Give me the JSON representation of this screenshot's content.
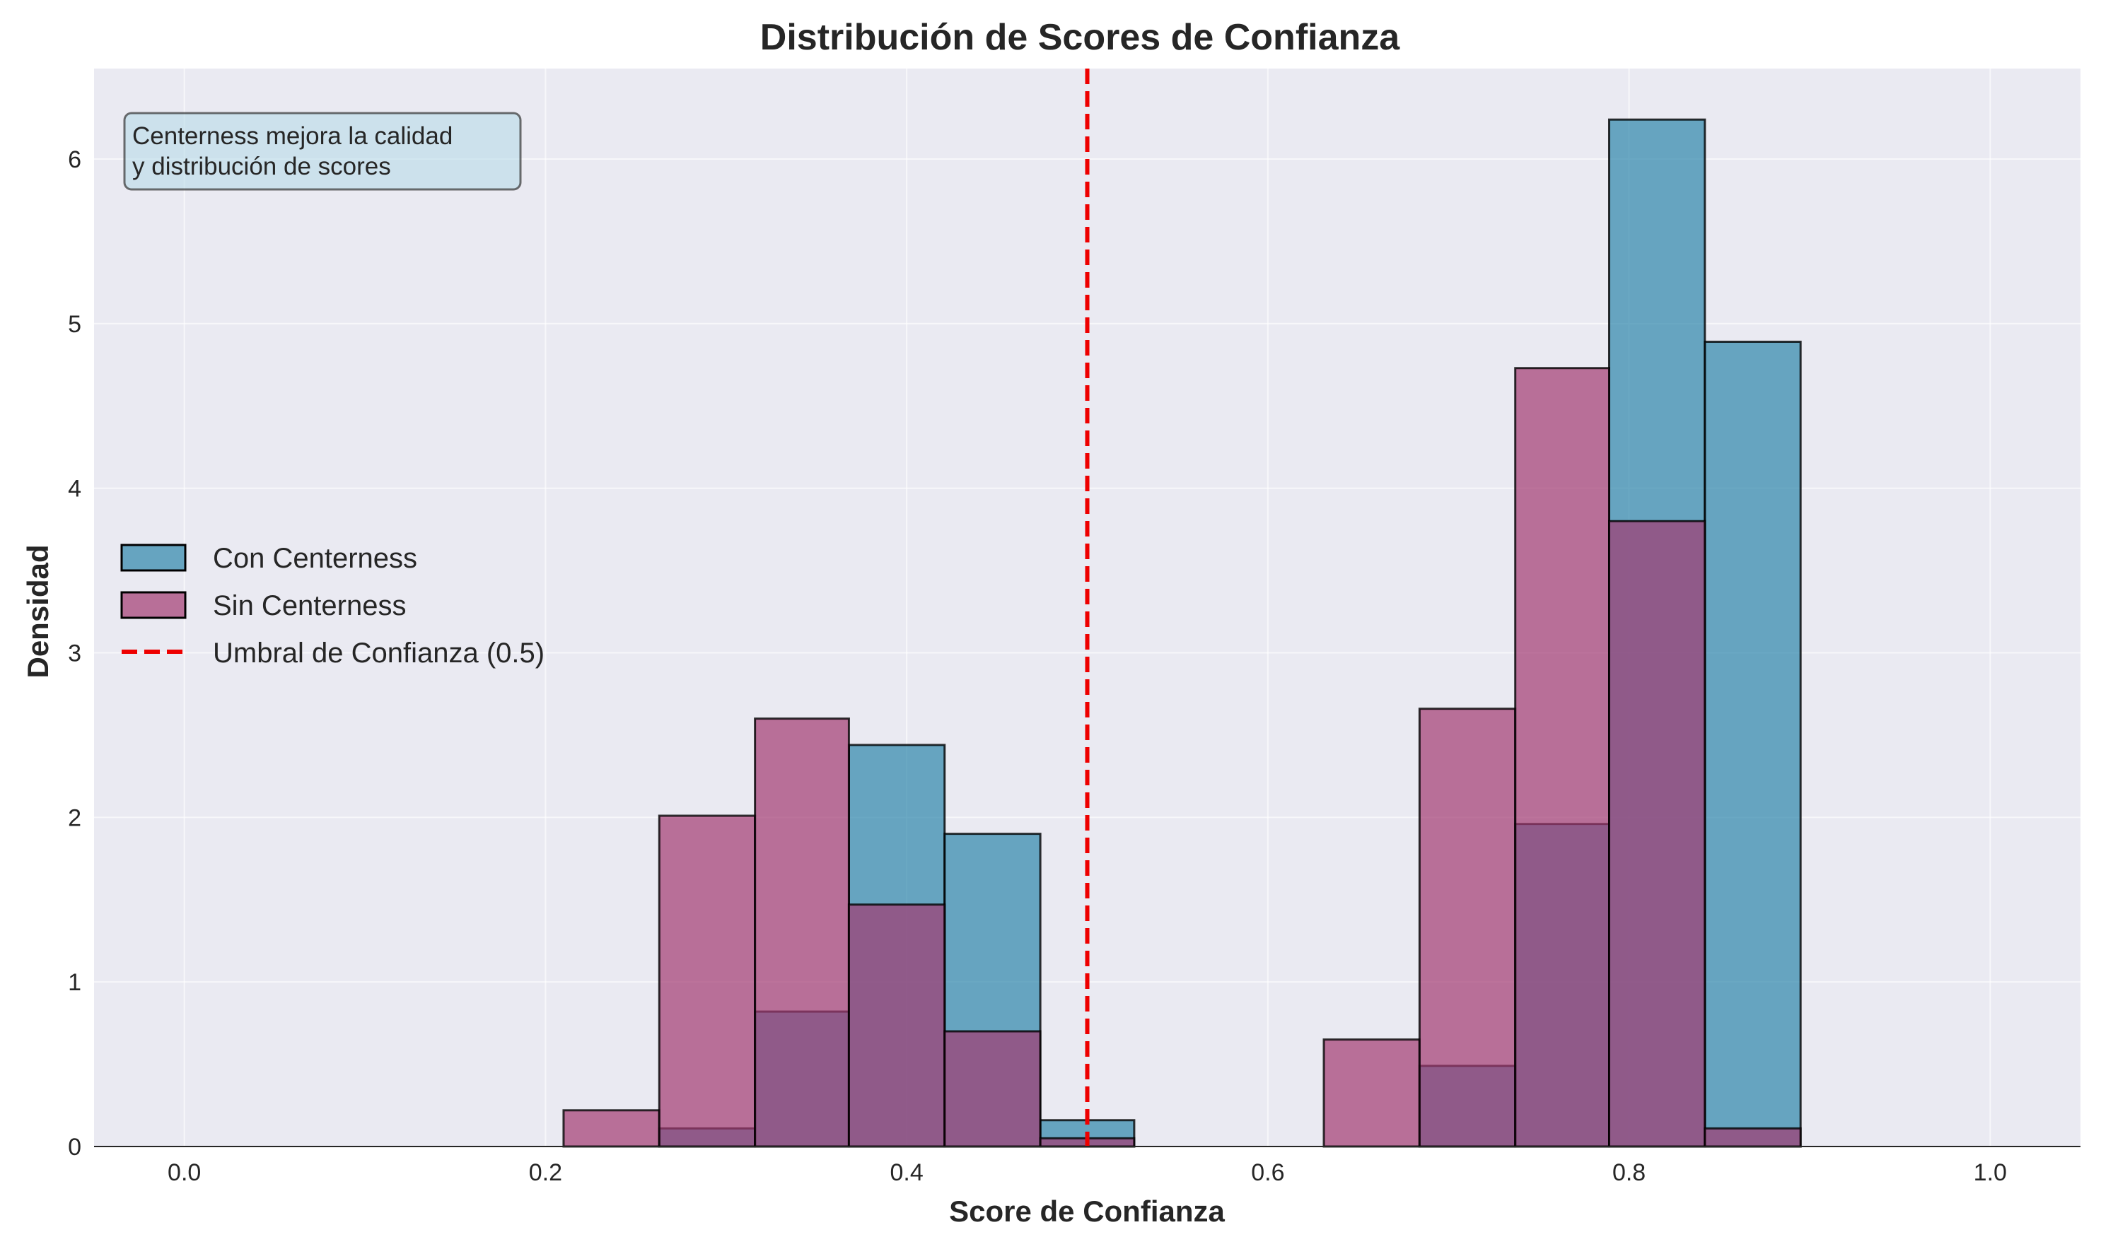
{
  "colors": {
    "background": "#eaeaf2",
    "grid": "#ffffff",
    "con": "#2e86ab",
    "sin": "#a23b72",
    "threshold": "#ee0000",
    "edge": "#000000",
    "note_fill": "#add8e6"
  },
  "chart_data": {
    "type": "bar",
    "title": "Distribución de Scores de Confianza",
    "xlabel": "Score de Confianza",
    "ylabel": "Densidad",
    "xlim": [
      -0.05,
      1.05
    ],
    "ylim": [
      0,
      6.55
    ],
    "xticks": [
      0.0,
      0.2,
      0.4,
      0.6,
      0.8,
      1.0
    ],
    "xtick_labels": [
      "0.0",
      "0.2",
      "0.4",
      "0.6",
      "0.8",
      "1.0"
    ],
    "yticks": [
      0,
      1,
      2,
      3,
      4,
      5,
      6
    ],
    "ytick_labels": [
      "0",
      "1",
      "2",
      "3",
      "4",
      "5",
      "6"
    ],
    "grid": true,
    "legend_position": "center-left",
    "series": [
      {
        "name": "Con Centerness",
        "bins": [
          {
            "x0": 0.263,
            "x1": 0.316,
            "value": 0.11
          },
          {
            "x0": 0.316,
            "x1": 0.368,
            "value": 0.82
          },
          {
            "x0": 0.368,
            "x1": 0.421,
            "value": 2.44
          },
          {
            "x0": 0.421,
            "x1": 0.474,
            "value": 1.9
          },
          {
            "x0": 0.474,
            "x1": 0.526,
            "value": 0.16
          },
          {
            "x0": 0.684,
            "x1": 0.737,
            "value": 0.49
          },
          {
            "x0": 0.737,
            "x1": 0.789,
            "value": 1.96
          },
          {
            "x0": 0.789,
            "x1": 0.842,
            "value": 6.24
          },
          {
            "x0": 0.842,
            "x1": 0.895,
            "value": 4.89
          }
        ]
      },
      {
        "name": "Sin Centerness",
        "bins": [
          {
            "x0": 0.21,
            "x1": 0.263,
            "value": 0.22
          },
          {
            "x0": 0.263,
            "x1": 0.316,
            "value": 2.01
          },
          {
            "x0": 0.316,
            "x1": 0.368,
            "value": 2.6
          },
          {
            "x0": 0.368,
            "x1": 0.421,
            "value": 1.47
          },
          {
            "x0": 0.421,
            "x1": 0.474,
            "value": 0.7
          },
          {
            "x0": 0.474,
            "x1": 0.526,
            "value": 0.05
          },
          {
            "x0": 0.631,
            "x1": 0.684,
            "value": 0.65
          },
          {
            "x0": 0.684,
            "x1": 0.737,
            "value": 2.66
          },
          {
            "x0": 0.737,
            "x1": 0.789,
            "value": 4.73
          },
          {
            "x0": 0.789,
            "x1": 0.842,
            "value": 3.8
          },
          {
            "x0": 0.842,
            "x1": 0.895,
            "value": 0.11
          }
        ]
      }
    ],
    "threshold": {
      "x": 0.5,
      "label": "Umbral de Confianza (0.5)"
    },
    "annotation": [
      "Centerness mejora la calidad",
      "y distribución de scores"
    ]
  }
}
